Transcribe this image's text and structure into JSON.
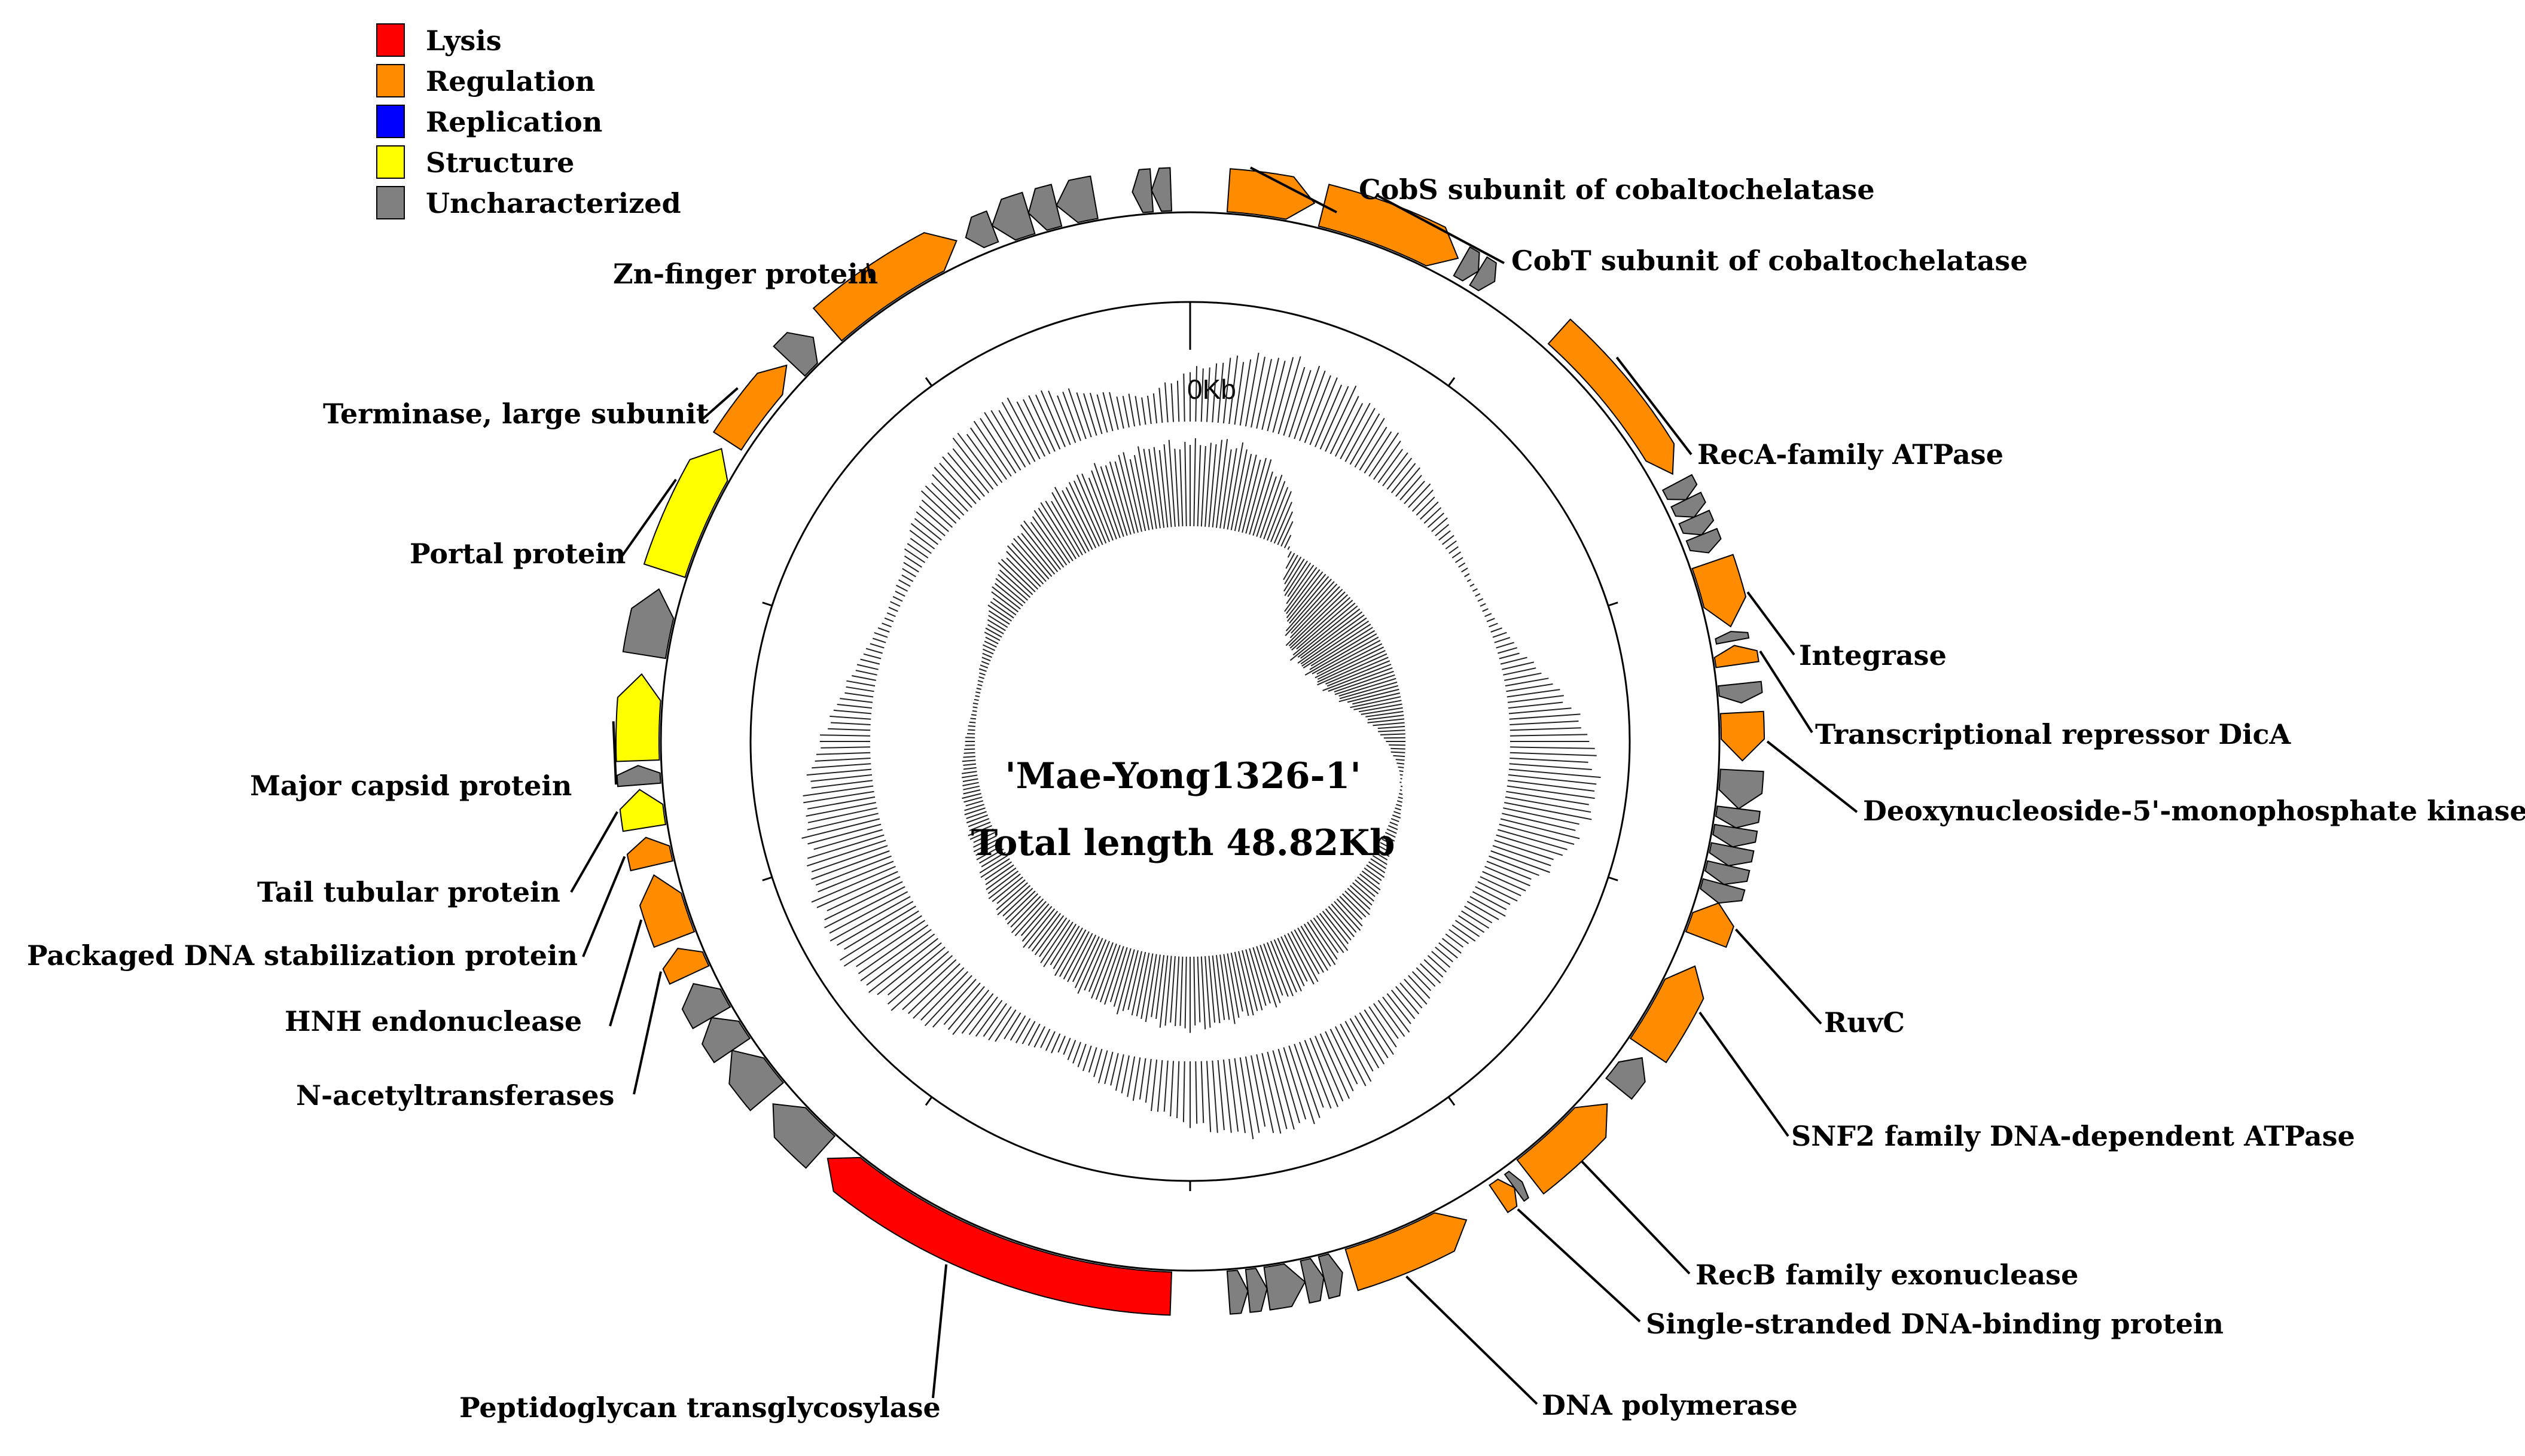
{
  "figure": {
    "name": "Mae-Yong1326-1",
    "title_line1": "'Mae-Yong1326-1'",
    "title_line2": "Total length 48.82Kb",
    "total_length_kb": 48.82,
    "origin_label": "0Kb"
  },
  "legend": [
    {
      "key": "lysis",
      "label": "Lysis",
      "color": "#ff0000"
    },
    {
      "key": "regulation",
      "label": "Regulation",
      "color": "#ff8c00"
    },
    {
      "key": "replication",
      "label": "Replication",
      "color": "#0000ff"
    },
    {
      "key": "structure",
      "label": "Structure",
      "color": "#ffff00"
    },
    {
      "key": "uncharacterized",
      "label": "Uncharacterized",
      "color": "#808080"
    }
  ],
  "genes": [
    {
      "id": "cobS",
      "label": "CobS subunit of cobaltochelatase",
      "category": "regulation",
      "start_deg": 4,
      "end_deg": 13,
      "ring": "outer",
      "dir": "cw"
    },
    {
      "id": "cobT",
      "label": "CobT subunit of cobaltochelatase",
      "category": "regulation",
      "start_deg": 14,
      "end_deg": 29,
      "ring": "outer",
      "dir": "cw"
    },
    {
      "id": "recA",
      "label": "RecA-family ATPase",
      "category": "regulation",
      "start_deg": 42,
      "end_deg": 61,
      "ring": "inner",
      "dir": "cw"
    },
    {
      "id": "integrase",
      "label": "Integrase",
      "category": "regulation",
      "start_deg": 71,
      "end_deg": 78,
      "ring": "outer",
      "dir": "cw"
    },
    {
      "id": "dicA",
      "label": "Transcriptional repressor DicA",
      "category": "regulation",
      "start_deg": 80,
      "end_deg": 82,
      "ring": "outer",
      "dir": "ccw"
    },
    {
      "id": "dnmk",
      "label": "Deoxynucleoside-5'-monophosphate kinase",
      "category": "regulation",
      "start_deg": 87,
      "end_deg": 92,
      "ring": "outer",
      "dir": "cw"
    },
    {
      "id": "ruvC",
      "label": "RuvC",
      "category": "regulation",
      "start_deg": 107,
      "end_deg": 111,
      "ring": "outer",
      "dir": "ccw"
    },
    {
      "id": "snf2",
      "label": "SNF2 family DNA-dependent ATPase",
      "category": "regulation",
      "start_deg": 114,
      "end_deg": 124,
      "ring": "outer",
      "dir": "ccw"
    },
    {
      "id": "recB",
      "label": "RecB family exonuclease",
      "category": "regulation",
      "start_deg": 131,
      "end_deg": 142,
      "ring": "outer",
      "dir": "ccw"
    },
    {
      "id": "ssb",
      "label": "Single-stranded DNA-binding protein",
      "category": "regulation",
      "start_deg": 144,
      "end_deg": 146,
      "ring": "inner",
      "dir": "ccw"
    },
    {
      "id": "dnapol",
      "label": "DNA polymerase",
      "category": "regulation",
      "start_deg": 150,
      "end_deg": 163,
      "ring": "outer",
      "dir": "ccw"
    },
    {
      "id": "pgt",
      "label": "Peptidoglycan transglycosylase",
      "category": "lysis",
      "start_deg": 182,
      "end_deg": 221,
      "ring": "outer",
      "dir": "cw"
    },
    {
      "id": "nat",
      "label": "N-acetyltransferases",
      "category": "regulation",
      "start_deg": 245,
      "end_deg": 248,
      "ring": "outer",
      "dir": "cw"
    },
    {
      "id": "hnh",
      "label": "HNH endonuclease",
      "category": "regulation",
      "start_deg": 249,
      "end_deg": 256,
      "ring": "outer",
      "dir": "cw"
    },
    {
      "id": "pdsp",
      "label": "Packaged DNA stabilization protein",
      "category": "regulation",
      "start_deg": 257,
      "end_deg": 260,
      "ring": "outer",
      "dir": "cw"
    },
    {
      "id": "ttp",
      "label": "Tail tubular protein",
      "category": "structure",
      "start_deg": 261,
      "end_deg": 265,
      "ring": "outer",
      "dir": "cw"
    },
    {
      "id": "mcp",
      "label": "Major capsid protein",
      "category": "structure",
      "start_deg": 268,
      "end_deg": 277,
      "ring": "outer",
      "dir": "cw"
    },
    {
      "id": "portal",
      "label": "Portal protein",
      "category": "structure",
      "start_deg": 288,
      "end_deg": 302,
      "ring": "outer",
      "dir": "cw"
    },
    {
      "id": "terminase",
      "label": "Terminase, large subunit",
      "category": "regulation",
      "start_deg": 303,
      "end_deg": 313,
      "ring": "inner",
      "dir": "cw"
    },
    {
      "id": "znf",
      "label": "Zn-finger protein",
      "category": "regulation",
      "start_deg": 319,
      "end_deg": 335,
      "ring": "outer",
      "dir": "cw"
    }
  ],
  "unlabeled_genes": [
    {
      "category": "uncharacterized",
      "start_deg": 29.5,
      "end_deg": 31.5,
      "ring": "inner",
      "dir": "cw"
    },
    {
      "category": "uncharacterized",
      "start_deg": 31.5,
      "end_deg": 33.5,
      "ring": "inner",
      "dir": "cw"
    },
    {
      "category": "uncharacterized",
      "start_deg": 62,
      "end_deg": 64,
      "ring": "inner",
      "dir": "cw"
    },
    {
      "category": "uncharacterized",
      "start_deg": 64,
      "end_deg": 66,
      "ring": "inner",
      "dir": "cw"
    },
    {
      "category": "uncharacterized",
      "start_deg": 66,
      "end_deg": 68,
      "ring": "inner",
      "dir": "cw"
    },
    {
      "category": "uncharacterized",
      "start_deg": 68,
      "end_deg": 70,
      "ring": "inner",
      "dir": "cw"
    },
    {
      "category": "uncharacterized",
      "start_deg": 78.5,
      "end_deg": 79.5,
      "ring": "inner",
      "dir": "ccw"
    },
    {
      "category": "uncharacterized",
      "start_deg": 84,
      "end_deg": 86,
      "ring": "outer",
      "dir": "cw"
    },
    {
      "category": "uncharacterized",
      "start_deg": 93,
      "end_deg": 97,
      "ring": "outer",
      "dir": "cw"
    },
    {
      "category": "uncharacterized",
      "start_deg": 97,
      "end_deg": 99,
      "ring": "outer",
      "dir": "cw"
    },
    {
      "category": "uncharacterized",
      "start_deg": 99,
      "end_deg": 101,
      "ring": "outer",
      "dir": "cw"
    },
    {
      "category": "uncharacterized",
      "start_deg": 101,
      "end_deg": 103,
      "ring": "outer",
      "dir": "cw"
    },
    {
      "category": "uncharacterized",
      "start_deg": 103,
      "end_deg": 105,
      "ring": "outer",
      "dir": "cw"
    },
    {
      "category": "uncharacterized",
      "start_deg": 105,
      "end_deg": 107,
      "ring": "outer",
      "dir": "cw"
    },
    {
      "category": "uncharacterized",
      "start_deg": 125,
      "end_deg": 129,
      "ring": "inner",
      "dir": "ccw"
    },
    {
      "category": "uncharacterized",
      "start_deg": 143,
      "end_deg": 144,
      "ring": "inner",
      "dir": "ccw"
    },
    {
      "category": "uncharacterized",
      "start_deg": 164,
      "end_deg": 166,
      "ring": "outer",
      "dir": "ccw"
    },
    {
      "category": "uncharacterized",
      "start_deg": 166,
      "end_deg": 168,
      "ring": "outer",
      "dir": "ccw"
    },
    {
      "category": "uncharacterized",
      "start_deg": 168,
      "end_deg": 172,
      "ring": "outer",
      "dir": "ccw"
    },
    {
      "category": "uncharacterized",
      "start_deg": 172,
      "end_deg": 174,
      "ring": "outer",
      "dir": "ccw"
    },
    {
      "category": "uncharacterized",
      "start_deg": 174,
      "end_deg": 176,
      "ring": "outer",
      "dir": "ccw"
    },
    {
      "category": "uncharacterized",
      "start_deg": 222,
      "end_deg": 229,
      "ring": "outer",
      "dir": "cw"
    },
    {
      "category": "uncharacterized",
      "start_deg": 230,
      "end_deg": 236,
      "ring": "outer",
      "dir": "cw"
    },
    {
      "category": "uncharacterized",
      "start_deg": 236,
      "end_deg": 240,
      "ring": "outer",
      "dir": "cw"
    },
    {
      "category": "uncharacterized",
      "start_deg": 240,
      "end_deg": 244,
      "ring": "outer",
      "dir": "cw"
    },
    {
      "category": "uncharacterized",
      "start_deg": 265.5,
      "end_deg": 267.5,
      "ring": "outer",
      "dir": "cw"
    },
    {
      "category": "uncharacterized",
      "start_deg": 279,
      "end_deg": 286,
      "ring": "outer",
      "dir": "cw"
    },
    {
      "category": "uncharacterized",
      "start_deg": 313.5,
      "end_deg": 317,
      "ring": "outer",
      "dir": "cw"
    },
    {
      "category": "uncharacterized",
      "start_deg": 336,
      "end_deg": 339,
      "ring": "inner",
      "dir": "ccw"
    },
    {
      "category": "uncharacterized",
      "start_deg": 339,
      "end_deg": 343,
      "ring": "outer",
      "dir": "ccw"
    },
    {
      "category": "uncharacterized",
      "start_deg": 343,
      "end_deg": 346,
      "ring": "outer",
      "dir": "ccw"
    },
    {
      "category": "uncharacterized",
      "start_deg": 346,
      "end_deg": 350,
      "ring": "outer",
      "dir": "ccw"
    },
    {
      "category": "uncharacterized",
      "start_deg": 354,
      "end_deg": 356,
      "ring": "outer",
      "dir": "ccw"
    },
    {
      "category": "uncharacterized",
      "start_deg": 356,
      "end_deg": 358,
      "ring": "outer",
      "dir": "ccw"
    }
  ],
  "tracks": {
    "gc_content": {
      "description": "GC content deviation",
      "values": [
        0.55,
        0.75,
        0.85,
        0.8,
        0.65,
        0.45,
        0.3,
        0.15,
        0.05,
        0.08,
        0.25,
        0.6,
        0.9,
        1.0,
        0.85,
        0.55,
        0.4,
        0.25,
        0.3,
        0.45,
        0.65,
        0.8,
        0.9,
        0.85,
        0.7,
        0.5,
        0.35,
        0.2,
        0.3,
        0.55,
        0.8,
        0.95,
        1.0,
        0.95,
        0.85,
        0.75,
        0.55,
        0.35,
        0.2,
        0.1,
        0.15,
        0.35,
        0.55,
        0.7,
        0.75,
        0.65,
        0.45,
        0.3
      ]
    },
    "gc_skew": {
      "description": "GC skew",
      "values": [
        0.85,
        0.9,
        0.8,
        0.55,
        -0.3,
        -0.6,
        -0.8,
        -0.85,
        -0.8,
        -0.75,
        -0.6,
        -0.4,
        -0.2,
        -0.05,
        0.05,
        0.1,
        0.15,
        0.25,
        0.35,
        0.45,
        0.55,
        0.6,
        0.65,
        0.7,
        0.75,
        0.7,
        0.65,
        0.6,
        0.55,
        0.5,
        0.45,
        0.4,
        0.3,
        0.25,
        0.2,
        0.15,
        0.1,
        0.05,
        0.05,
        0.1,
        0.2,
        0.35,
        0.5,
        0.6,
        0.7,
        0.75,
        0.8,
        0.85
      ]
    }
  }
}
